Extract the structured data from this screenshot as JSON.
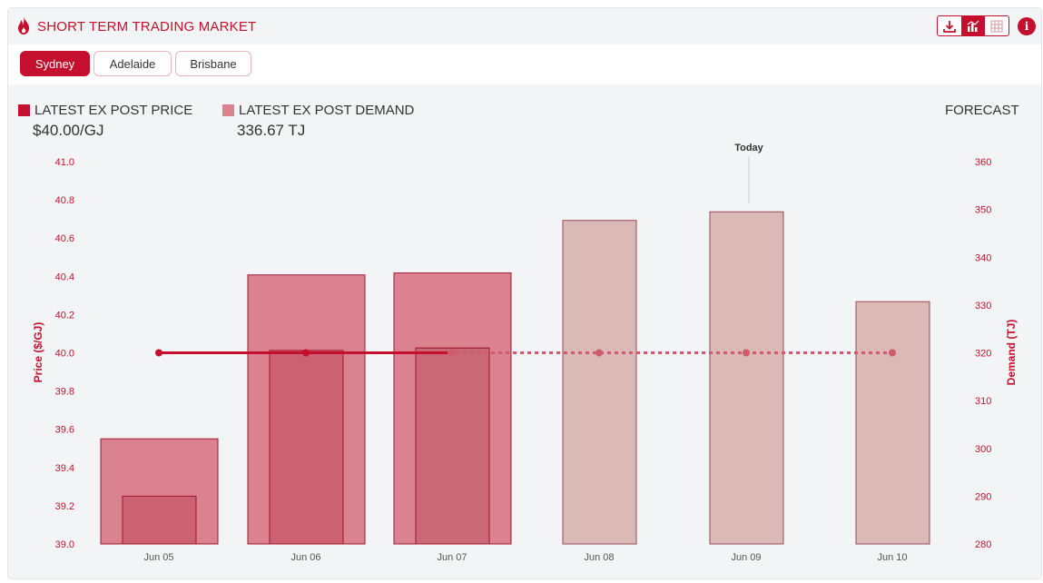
{
  "header": {
    "title": "SHORT TERM TRADING MARKET",
    "icon": "flame-icon",
    "toolbar": [
      "download-icon",
      "chart-icon",
      "table-icon"
    ],
    "info_label": "i"
  },
  "tabs": [
    {
      "label": "Sydney",
      "active": true
    },
    {
      "label": "Adelaide",
      "active": false
    },
    {
      "label": "Brisbane",
      "active": false
    }
  ],
  "legend": {
    "price": {
      "label": "LATEST EX POST PRICE",
      "value": "$40.00/GJ",
      "color": "#c4102e"
    },
    "demand": {
      "label": "LATEST EX POST DEMAND",
      "value": "336.67 TJ",
      "color": "#db8290"
    }
  },
  "forecast_label": "FORECAST",
  "today_label": "Today",
  "chart_data": {
    "type": "bar",
    "categories": [
      "Jun 05",
      "Jun 06",
      "Jun 07",
      "Jun 08",
      "Jun 09",
      "Jun 10"
    ],
    "ylabel": "Price ($/GJ)",
    "y2label": "Demand (TJ)",
    "ylim": [
      39.0,
      41.0
    ],
    "y2lim": [
      280,
      360
    ],
    "yticks": [
      "39.0",
      "39.2",
      "39.4",
      "39.6",
      "39.8",
      "40.0",
      "40.2",
      "40.4",
      "40.6",
      "40.8",
      "41.0"
    ],
    "y2ticks": [
      "280",
      "290",
      "300",
      "310",
      "320",
      "330",
      "340",
      "350",
      "360"
    ],
    "series": [
      {
        "values": [
          302,
          336.3,
          336.7,
          null,
          null,
          null
        ],
        "color": "#db8290",
        "kind": "bar-wide",
        "axis": "right"
      },
      {
        "values": [
          290,
          320.5,
          321,
          null,
          null,
          null
        ],
        "color": "#c95c6c",
        "kind": "bar-narrow",
        "axis": "right"
      },
      {
        "values": [
          null,
          null,
          321,
          347.7,
          349.5,
          330.7
        ],
        "color": "#d8b3b1",
        "kind": "bar-forecast",
        "axis": "right"
      },
      {
        "values": [
          40.0,
          40.0,
          40.0,
          40.0,
          40.0,
          40.0
        ],
        "color": "#c4102e",
        "kind": "line",
        "axis": "left"
      }
    ],
    "today_category": "Jun 09",
    "grid": false
  }
}
